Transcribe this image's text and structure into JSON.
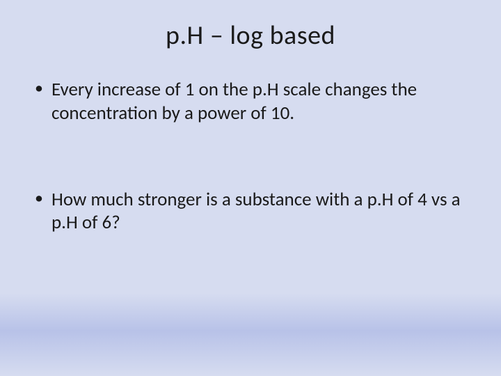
{
  "slide": {
    "background_color_top": "#d6dcf0",
    "background_gradient_mid": "#b8c2e8",
    "title": "p.H – log based",
    "title_fontsize": 38,
    "title_color": "#1a1a1a",
    "body_fontsize": 27,
    "body_color": "#1a1a1a",
    "bullets": [
      "Every increase of 1 on the p.H scale changes the concentration by a power of 10.",
      "How much stronger is a substance with a p.H of 4 vs a p.H of 6?"
    ]
  }
}
